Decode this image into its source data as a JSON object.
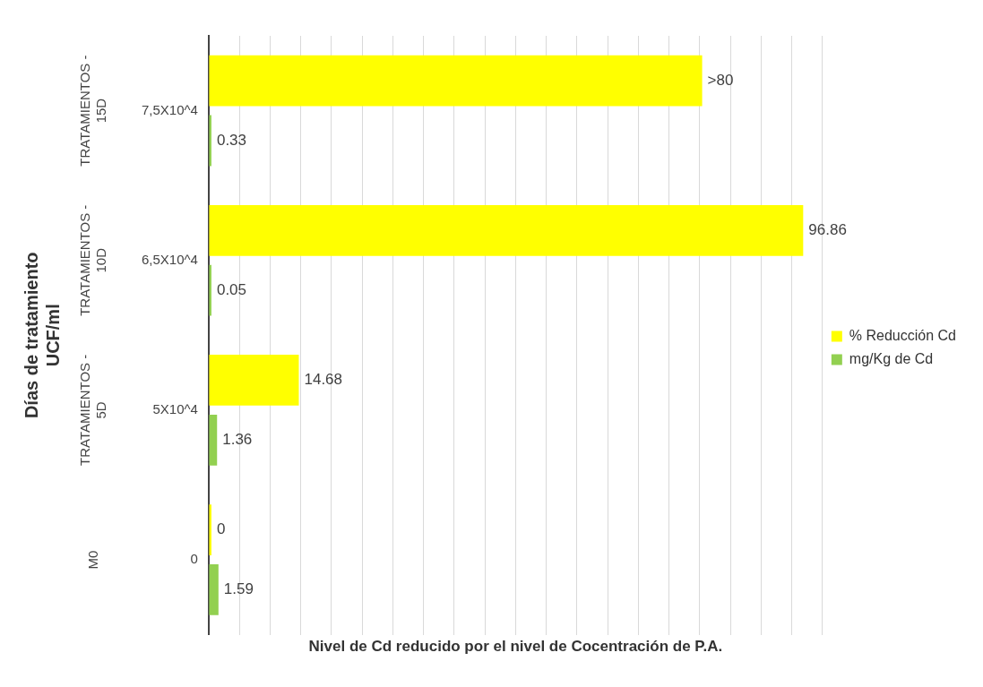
{
  "chart_data": {
    "type": "bar",
    "orientation": "horizontal",
    "categories": [
      "7,5X10^4",
      "6,5X10^4",
      "5X10^4",
      "0"
    ],
    "series": [
      {
        "name": "% Reducción Cd",
        "color": "#ffff00",
        "values": [
          80.4,
          96.86,
          14.68,
          0
        ],
        "value_labels": [
          ">80",
          "96.86",
          "14.68",
          "0"
        ]
      },
      {
        "name": "mg/Kg de Cd",
        "color": "#92d050",
        "values": [
          0.33,
          0.05,
          1.36,
          1.59
        ],
        "value_labels": [
          "0.33",
          "0.05",
          "1.36",
          "1.59"
        ]
      }
    ],
    "xlim": [
      0,
      100
    ],
    "xticks": [
      {
        "value": 0,
        "label": null
      },
      {
        "value": 5,
        "label": null
      },
      {
        "value": 10,
        "label": null
      },
      {
        "value": 15,
        "label": null
      },
      {
        "value": 20,
        "label": null
      },
      {
        "value": 25,
        "label": null
      },
      {
        "value": 30,
        "label": null
      },
      {
        "value": 35,
        "label": null
      },
      {
        "value": 40,
        "label": null
      },
      {
        "value": 45,
        "label": null
      },
      {
        "value": 50,
        "label": null
      },
      {
        "value": 55,
        "label": null
      },
      {
        "value": 60,
        "label": null
      },
      {
        "value": 65,
        "label": null
      },
      {
        "value": 70,
        "label": null
      },
      {
        "value": 75,
        "label": null
      },
      {
        "value": 80,
        "label": null
      },
      {
        "value": 85,
        "label": null
      },
      {
        "value": 90,
        "label": null
      },
      {
        "value": 95,
        "label": null
      },
      {
        "value": 100,
        "label": null
      }
    ],
    "tick_labels": "y",
    "grid": "x",
    "legend": "right",
    "xlabel": "Nivel de Cd reducido por el nivel de Cocentración de P.A.",
    "ylabel": "Días de tratamiento\nUCF/ml",
    "annotations": [
      "TRATAMIENTOS - 15D",
      "TRATAMIENTOS - 10D",
      "TRATAMIENTOS - 5D",
      "M0"
    ]
  }
}
